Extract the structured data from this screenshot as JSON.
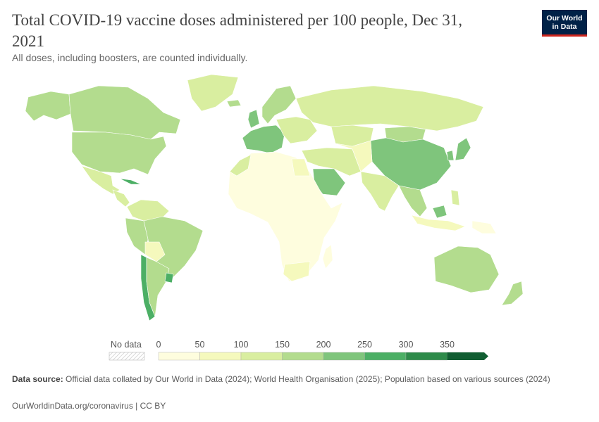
{
  "header": {
    "title": "Total COVID-19 vaccine doses administered per 100 people, Dec 31, 2021",
    "subtitle": "All doses, including boosters, are counted individually."
  },
  "logo": {
    "line1": "Our World",
    "line2": "in Data"
  },
  "legend": {
    "no_data_label": "No data",
    "ticks": [
      "0",
      "50",
      "100",
      "150",
      "200",
      "250",
      "300",
      "350"
    ],
    "bins": [
      {
        "from": 0,
        "to": 50,
        "color": "#fefdde"
      },
      {
        "from": 50,
        "to": 100,
        "color": "#f5f9bd"
      },
      {
        "from": 100,
        "to": 150,
        "color": "#d9eea0"
      },
      {
        "from": 150,
        "to": 200,
        "color": "#b3dc8e"
      },
      {
        "from": 200,
        "to": 250,
        "color": "#7fc57c"
      },
      {
        "from": 250,
        "to": 300,
        "color": "#4caf65"
      },
      {
        "from": 300,
        "to": 350,
        "color": "#2e8b4a"
      },
      {
        "from": 350,
        "to": null,
        "color": "#115e32"
      }
    ]
  },
  "footer": {
    "source_label": "Data source:",
    "source_text": "Official data collated by Our World in Data (2024); World Health Organisation (2025); Population based on various sources (2024)",
    "link_text": "OurWorldinData.org/coronavirus | CC BY"
  },
  "map": {
    "regions": [
      {
        "name": "Alaska",
        "color": "#b3dc8e"
      },
      {
        "name": "Canada",
        "color": "#b3dc8e"
      },
      {
        "name": "Greenland",
        "color": "#d9eea0"
      },
      {
        "name": "United States",
        "color": "#b3dc8e"
      },
      {
        "name": "Mexico",
        "color": "#d9eea0"
      },
      {
        "name": "Central America",
        "color": "#d9eea0"
      },
      {
        "name": "Cuba",
        "color": "#4caf65"
      },
      {
        "name": "Colombia & Venezuela",
        "color": "#d9eea0"
      },
      {
        "name": "Peru",
        "color": "#b3dc8e"
      },
      {
        "name": "Brazil",
        "color": "#b3dc8e"
      },
      {
        "name": "Bolivia",
        "color": "#f5f9bd"
      },
      {
        "name": "Chile",
        "color": "#4caf65"
      },
      {
        "name": "Argentina",
        "color": "#b3dc8e"
      },
      {
        "name": "Uruguay",
        "color": "#4caf65"
      },
      {
        "name": "Iceland",
        "color": "#b3dc8e"
      },
      {
        "name": "United Kingdom",
        "color": "#7fc57c"
      },
      {
        "name": "Scandinavia",
        "color": "#b3dc8e"
      },
      {
        "name": "Western Europe",
        "color": "#7fc57c"
      },
      {
        "name": "Eastern Europe",
        "color": "#d9eea0"
      },
      {
        "name": "Russia",
        "color": "#d9eea0"
      },
      {
        "name": "Kazakhstan",
        "color": "#d9eea0"
      },
      {
        "name": "Mongolia",
        "color": "#b3dc8e"
      },
      {
        "name": "China",
        "color": "#7fc57c"
      },
      {
        "name": "Japan",
        "color": "#7fc57c"
      },
      {
        "name": "Korea",
        "color": "#7fc57c"
      },
      {
        "name": "India",
        "color": "#d9eea0"
      },
      {
        "name": "Middle East",
        "color": "#d9eea0"
      },
      {
        "name": "Saudi Arabia",
        "color": "#7fc57c"
      },
      {
        "name": "Central Asia",
        "color": "#f5f9bd"
      },
      {
        "name": "Southeast Asia",
        "color": "#b3dc8e"
      },
      {
        "name": "Indonesia",
        "color": "#f5f9bd"
      },
      {
        "name": "Malaysia",
        "color": "#7fc57c"
      },
      {
        "name": "Philippines",
        "color": "#d9eea0"
      },
      {
        "name": "Papua New Guinea",
        "color": "#fefdde"
      },
      {
        "name": "Africa",
        "color": "#fefdde"
      },
      {
        "name": "Morocco",
        "color": "#d9eea0"
      },
      {
        "name": "Egypt",
        "color": "#f5f9bd"
      },
      {
        "name": "South Africa",
        "color": "#f5f9bd"
      },
      {
        "name": "Madagascar",
        "color": "#fefdde"
      },
      {
        "name": "Australia",
        "color": "#b3dc8e"
      },
      {
        "name": "New Zealand",
        "color": "#b3dc8e"
      }
    ]
  }
}
